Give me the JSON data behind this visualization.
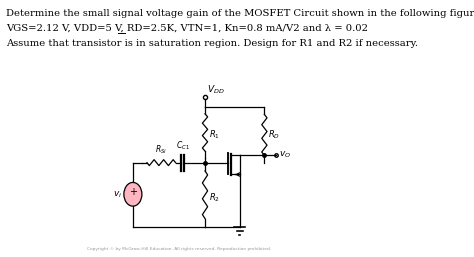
{
  "line1": "Determine the small signal voltage gain of the MOSFET Circuit shown in the following figure:",
  "line2_pre": "VGS=2.12 V, VDD=5 V, RD=2.5K, VTN=1, ",
  "line2_kn": "Kn",
  "line2_post": "=0.8 mA/V2 and λ = 0.02",
  "line3": "Assume that transistor is in saturation region. Design for R1 and R2 if necessary.",
  "bg_color": "#ffffff",
  "text_color": "#000000",
  "circuit_color": "#000000",
  "fig_width": 4.74,
  "fig_height": 2.57,
  "dpi": 100,
  "vi_color": "#FFB6C1",
  "copyright": "Copyright © by McGraw-Hill Education. All rights reserved. Reproduction prohibited."
}
